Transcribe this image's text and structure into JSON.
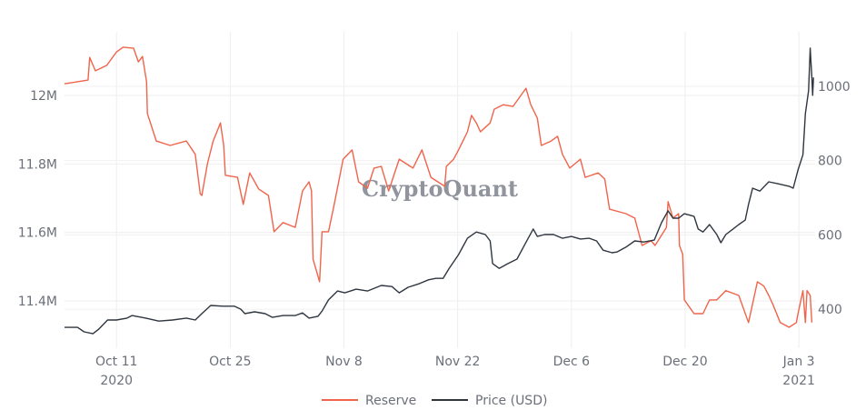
{
  "chart_data": {
    "type": "line",
    "title": "",
    "watermark": "CryptoQuant",
    "x_unit": "days since 2020-10-11",
    "xlim": [
      -6.4,
      86
    ],
    "x_ticks": [
      {
        "day": 0,
        "label": "Oct 11",
        "year": "2020"
      },
      {
        "day": 14,
        "label": "Oct 25",
        "year": ""
      },
      {
        "day": 28,
        "label": "Nov 8",
        "year": ""
      },
      {
        "day": 42,
        "label": "Nov 22",
        "year": ""
      },
      {
        "day": 56,
        "label": "Dec 6",
        "year": ""
      },
      {
        "day": 70,
        "label": "Dec 20",
        "year": ""
      },
      {
        "day": 84,
        "label": "Jan 3",
        "year": "2021"
      }
    ],
    "y_left": {
      "ylim": [
        11.262,
        12.186
      ],
      "ticks": [
        {
          "v": 12.0,
          "label": "12M"
        },
        {
          "v": 11.8,
          "label": "11.8M"
        },
        {
          "v": 11.6,
          "label": "11.6M"
        },
        {
          "v": 11.4,
          "label": "11.4M"
        }
      ]
    },
    "y_right": {
      "ylim": [
        295,
        1147
      ],
      "ticks": [
        {
          "v": 1000,
          "label": "1000"
        },
        {
          "v": 800,
          "label": "800"
        },
        {
          "v": 600,
          "label": "600"
        },
        {
          "v": 400,
          "label": "400"
        }
      ]
    },
    "grid": true,
    "legend_position": "bottom-center",
    "series": [
      {
        "name": "Reserve",
        "axis": "left",
        "unit": "M",
        "color": "#f0644b",
        "points": [
          [
            -6.4,
            12.034
          ],
          [
            -3.5,
            12.045
          ],
          [
            -3.3,
            12.111
          ],
          [
            -2.6,
            12.072
          ],
          [
            -1.2,
            12.088
          ],
          [
            0,
            12.127
          ],
          [
            0.8,
            12.141
          ],
          [
            2.1,
            12.138
          ],
          [
            2.7,
            12.098
          ],
          [
            3.2,
            12.114
          ],
          [
            3.7,
            12.04
          ],
          [
            3.8,
            11.947
          ],
          [
            4.9,
            11.867
          ],
          [
            6.6,
            11.854
          ],
          [
            8.6,
            11.867
          ],
          [
            9.7,
            11.828
          ],
          [
            10.3,
            11.713
          ],
          [
            10.5,
            11.708
          ],
          [
            11.2,
            11.801
          ],
          [
            11.9,
            11.867
          ],
          [
            12.8,
            11.92
          ],
          [
            13.2,
            11.854
          ],
          [
            13.4,
            11.767
          ],
          [
            14.9,
            11.761
          ],
          [
            15.6,
            11.682
          ],
          [
            16.4,
            11.774
          ],
          [
            17.5,
            11.727
          ],
          [
            18.7,
            11.708
          ],
          [
            19.4,
            11.602
          ],
          [
            20.5,
            11.629
          ],
          [
            22.0,
            11.615
          ],
          [
            22.9,
            11.721
          ],
          [
            23.7,
            11.748
          ],
          [
            24.0,
            11.721
          ],
          [
            24.2,
            11.522
          ],
          [
            25.0,
            11.456
          ],
          [
            25.3,
            11.602
          ],
          [
            26.1,
            11.602
          ],
          [
            26.8,
            11.682
          ],
          [
            27.9,
            11.814
          ],
          [
            29.0,
            11.841
          ],
          [
            29.8,
            11.748
          ],
          [
            30.9,
            11.729
          ],
          [
            31.7,
            11.788
          ],
          [
            32.6,
            11.793
          ],
          [
            33.5,
            11.721
          ],
          [
            34.8,
            11.814
          ],
          [
            36.5,
            11.788
          ],
          [
            37.6,
            11.841
          ],
          [
            38.7,
            11.761
          ],
          [
            40.4,
            11.735
          ],
          [
            40.6,
            11.793
          ],
          [
            41.5,
            11.814
          ],
          [
            42.1,
            11.841
          ],
          [
            43.2,
            11.894
          ],
          [
            43.7,
            11.942
          ],
          [
            44.3,
            11.92
          ],
          [
            44.8,
            11.894
          ],
          [
            46.0,
            11.92
          ],
          [
            46.5,
            11.96
          ],
          [
            47.6,
            11.973
          ],
          [
            48.8,
            11.968
          ],
          [
            50.4,
            12.021
          ],
          [
            51.0,
            11.973
          ],
          [
            51.8,
            11.934
          ],
          [
            52.3,
            11.854
          ],
          [
            53.5,
            11.867
          ],
          [
            54.3,
            11.881
          ],
          [
            54.9,
            11.828
          ],
          [
            55.8,
            11.788
          ],
          [
            57.1,
            11.814
          ],
          [
            57.7,
            11.761
          ],
          [
            59.3,
            11.774
          ],
          [
            60.1,
            11.756
          ],
          [
            60.7,
            11.668
          ],
          [
            62.7,
            11.655
          ],
          [
            63.8,
            11.642
          ],
          [
            64.7,
            11.562
          ],
          [
            65.8,
            11.576
          ],
          [
            66.3,
            11.562
          ],
          [
            67.7,
            11.615
          ],
          [
            67.9,
            11.69
          ],
          [
            68.5,
            11.642
          ],
          [
            69.2,
            11.655
          ],
          [
            69.3,
            11.562
          ],
          [
            69.7,
            11.536
          ],
          [
            69.9,
            11.403
          ],
          [
            71.1,
            11.363
          ],
          [
            72.2,
            11.363
          ],
          [
            73.0,
            11.403
          ],
          [
            73.9,
            11.403
          ],
          [
            75.0,
            11.43
          ],
          [
            76.6,
            11.416
          ],
          [
            77.8,
            11.337
          ],
          [
            78.9,
            11.456
          ],
          [
            79.7,
            11.443
          ],
          [
            80.3,
            11.416
          ],
          [
            80.8,
            11.39
          ],
          [
            81.7,
            11.337
          ],
          [
            82.8,
            11.323
          ],
          [
            83.7,
            11.337
          ],
          [
            83.9,
            11.363
          ],
          [
            84.5,
            11.43
          ],
          [
            84.8,
            11.337
          ],
          [
            85.0,
            11.43
          ],
          [
            85.4,
            11.416
          ],
          [
            85.6,
            11.337
          ]
        ]
      },
      {
        "name": "Price (USD)",
        "axis": "right",
        "unit": "USD",
        "color": "#2f3640",
        "points": [
          [
            -6.4,
            351
          ],
          [
            -4.8,
            351
          ],
          [
            -4.0,
            339
          ],
          [
            -2.9,
            334
          ],
          [
            -2.2,
            346
          ],
          [
            -1.1,
            371
          ],
          [
            0,
            371
          ],
          [
            1.3,
            376
          ],
          [
            1.9,
            383
          ],
          [
            3.6,
            376
          ],
          [
            5.2,
            368
          ],
          [
            6.9,
            371
          ],
          [
            8.6,
            376
          ],
          [
            9.7,
            371
          ],
          [
            10.5,
            388
          ],
          [
            11.6,
            410
          ],
          [
            13.1,
            408
          ],
          [
            14.5,
            408
          ],
          [
            15.3,
            400
          ],
          [
            15.8,
            388
          ],
          [
            17.0,
            393
          ],
          [
            18.3,
            388
          ],
          [
            19.2,
            378
          ],
          [
            20.5,
            383
          ],
          [
            22.0,
            383
          ],
          [
            22.9,
            390
          ],
          [
            23.7,
            376
          ],
          [
            24.8,
            381
          ],
          [
            25.3,
            395
          ],
          [
            26.1,
            425
          ],
          [
            27.2,
            449
          ],
          [
            28.1,
            444
          ],
          [
            29.5,
            454
          ],
          [
            30.9,
            449
          ],
          [
            32.6,
            464
          ],
          [
            33.9,
            461
          ],
          [
            34.8,
            444
          ],
          [
            35.9,
            459
          ],
          [
            37.3,
            469
          ],
          [
            38.4,
            479
          ],
          [
            39.3,
            483
          ],
          [
            40.2,
            483
          ],
          [
            40.9,
            508
          ],
          [
            42.1,
            547
          ],
          [
            43.2,
            591
          ],
          [
            44.3,
            608
          ],
          [
            45.4,
            601
          ],
          [
            46.0,
            584
          ],
          [
            46.3,
            523
          ],
          [
            47.1,
            510
          ],
          [
            48.2,
            523
          ],
          [
            49.3,
            535
          ],
          [
            50.2,
            572
          ],
          [
            51.3,
            616
          ],
          [
            51.8,
            596
          ],
          [
            52.7,
            601
          ],
          [
            53.8,
            601
          ],
          [
            54.9,
            591
          ],
          [
            56.0,
            596
          ],
          [
            57.1,
            589
          ],
          [
            58.2,
            591
          ],
          [
            59.1,
            584
          ],
          [
            59.9,
            559
          ],
          [
            61.0,
            552
          ],
          [
            61.6,
            554
          ],
          [
            62.7,
            567
          ],
          [
            63.8,
            584
          ],
          [
            64.9,
            581
          ],
          [
            66.2,
            586
          ],
          [
            67.1,
            633
          ],
          [
            67.9,
            665
          ],
          [
            68.5,
            645
          ],
          [
            69.2,
            645
          ],
          [
            69.9,
            657
          ],
          [
            71.1,
            650
          ],
          [
            71.6,
            616
          ],
          [
            72.2,
            608
          ],
          [
            73.0,
            628
          ],
          [
            73.9,
            601
          ],
          [
            74.4,
            579
          ],
          [
            75.0,
            601
          ],
          [
            75.9,
            616
          ],
          [
            76.6,
            628
          ],
          [
            77.4,
            640
          ],
          [
            77.8,
            682
          ],
          [
            78.3,
            726
          ],
          [
            79.2,
            718
          ],
          [
            80.3,
            743
          ],
          [
            81.4,
            738
          ],
          [
            82.8,
            731
          ],
          [
            83.3,
            726
          ],
          [
            83.9,
            775
          ],
          [
            84.5,
            816
          ],
          [
            84.8,
            927
          ],
          [
            85.2,
            988
          ],
          [
            85.4,
            1103
          ],
          [
            85.6,
            1024
          ],
          [
            85.7,
            976
          ],
          [
            85.8,
            1024
          ]
        ]
      }
    ]
  }
}
